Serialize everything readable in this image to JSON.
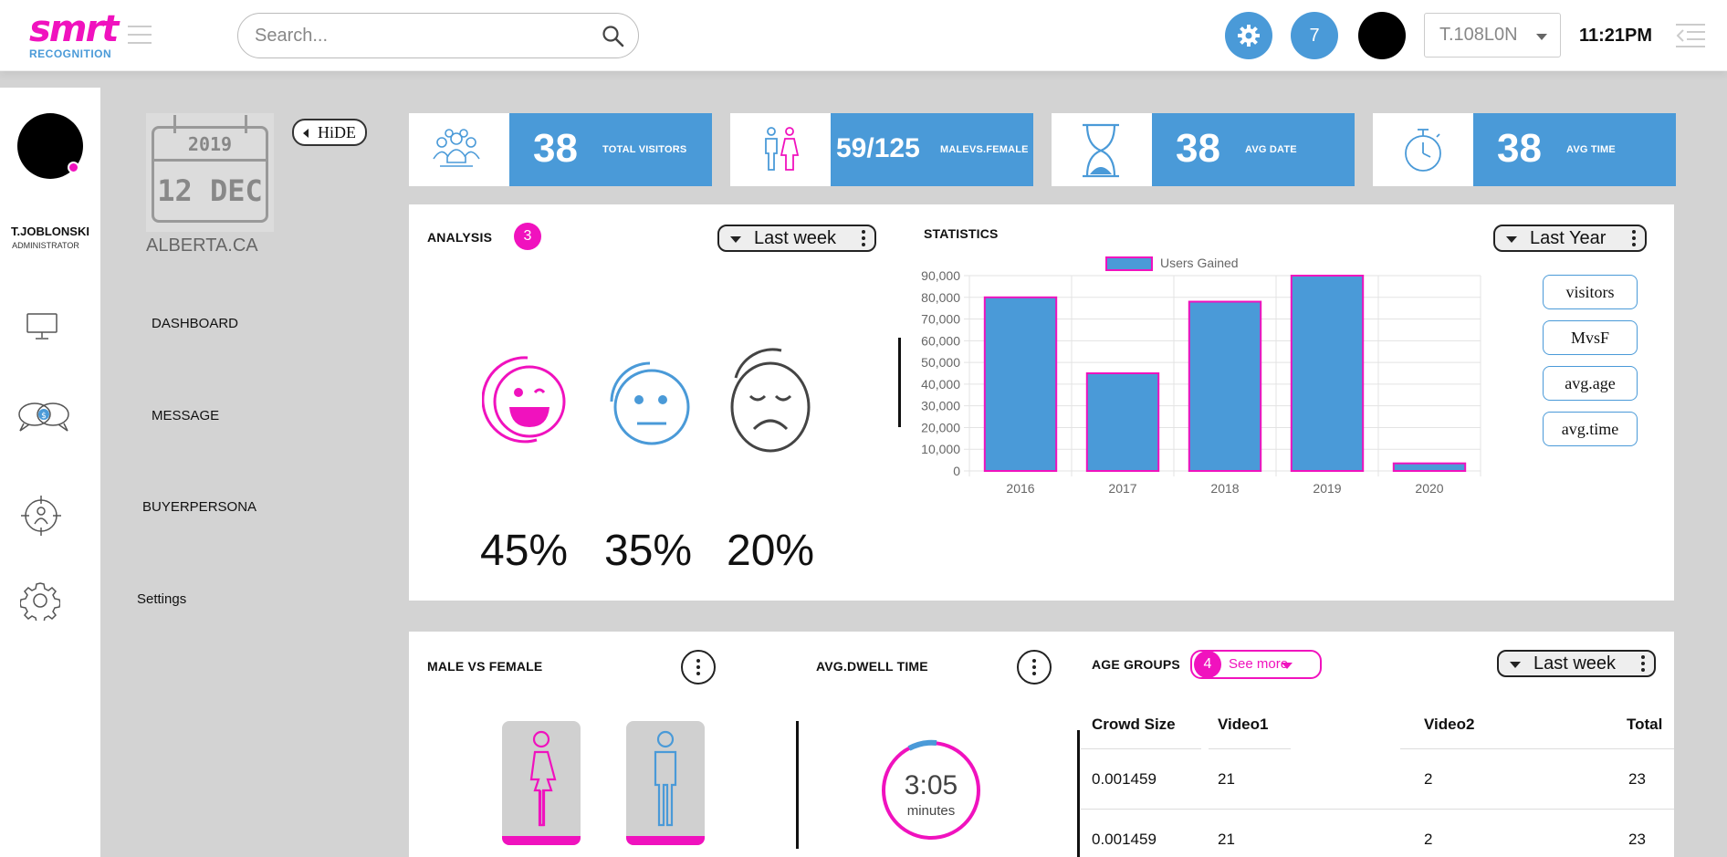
{
  "brand": {
    "logo_text": "smrt",
    "sub": "RECOGNITION"
  },
  "search": {
    "placeholder": "Search..."
  },
  "header": {
    "notifications": "7",
    "user_select": "T.108L0N",
    "time": "11:21PM"
  },
  "user": {
    "name": "T.JOBLONSKI",
    "role": "ADMINISTRATOR"
  },
  "calendar": {
    "year": "2019",
    "day": "12 DEC",
    "location": "ALBERTA.CA"
  },
  "hide_label": "HiDE",
  "menu": {
    "dashboard": "DASHBOARD",
    "message": "MESSAGE",
    "buyerpersona": "BUYERPERSONA",
    "settings": "Settings"
  },
  "stats": [
    {
      "value": "38",
      "label": "TOTAL VISITORS"
    },
    {
      "value": "59/125",
      "label": "MALEVS.FEMALE"
    },
    {
      "value": "38",
      "label": "AVG DATE"
    },
    {
      "value": "38",
      "label": "AVG TIME"
    }
  ],
  "analysis": {
    "title": "ANALYSIS",
    "badge": "3",
    "filter": "Last week",
    "happy": "45%",
    "neutral": "35%",
    "sad": "20%"
  },
  "statistics": {
    "title": "STATISTICS",
    "filter": "Last Year",
    "buttons": [
      "visitors",
      "MvsF",
      "avg.age",
      "avg.time"
    ]
  },
  "chart_data": {
    "type": "bar",
    "categories": [
      "2016",
      "2017",
      "2018",
      "2019",
      "2020"
    ],
    "series": [
      {
        "name": "Users Gained",
        "values": [
          80000,
          45000,
          78000,
          90000,
          3500
        ]
      }
    ],
    "ylim": [
      0,
      90000
    ],
    "yticks": [
      "0",
      "10,000",
      "20,000",
      "30,000",
      "40,000",
      "50,000",
      "60,000",
      "70,000",
      "80,000",
      "90,000"
    ],
    "legend": "top",
    "grid": true,
    "colors": {
      "fill": "#4a9ad8",
      "stroke": "#f012be"
    }
  },
  "male_female": {
    "title": "MALE VS FEMALE"
  },
  "dwell": {
    "title": "AVG.DWELL TIME",
    "value": "3:05",
    "unit": "minutes"
  },
  "age_groups": {
    "title": "AGE GROUPS",
    "badge": "4",
    "see_more": "See more",
    "filter": "Last week",
    "headers": [
      "Crowd Size",
      "Video1",
      "Video2",
      "Total"
    ],
    "rows": [
      [
        "0.001459",
        "21",
        "2",
        "23"
      ],
      [
        "0.001459",
        "21",
        "2",
        "23"
      ]
    ]
  },
  "colors": {
    "accent": "#4a9ad8",
    "pink": "#f012be"
  }
}
